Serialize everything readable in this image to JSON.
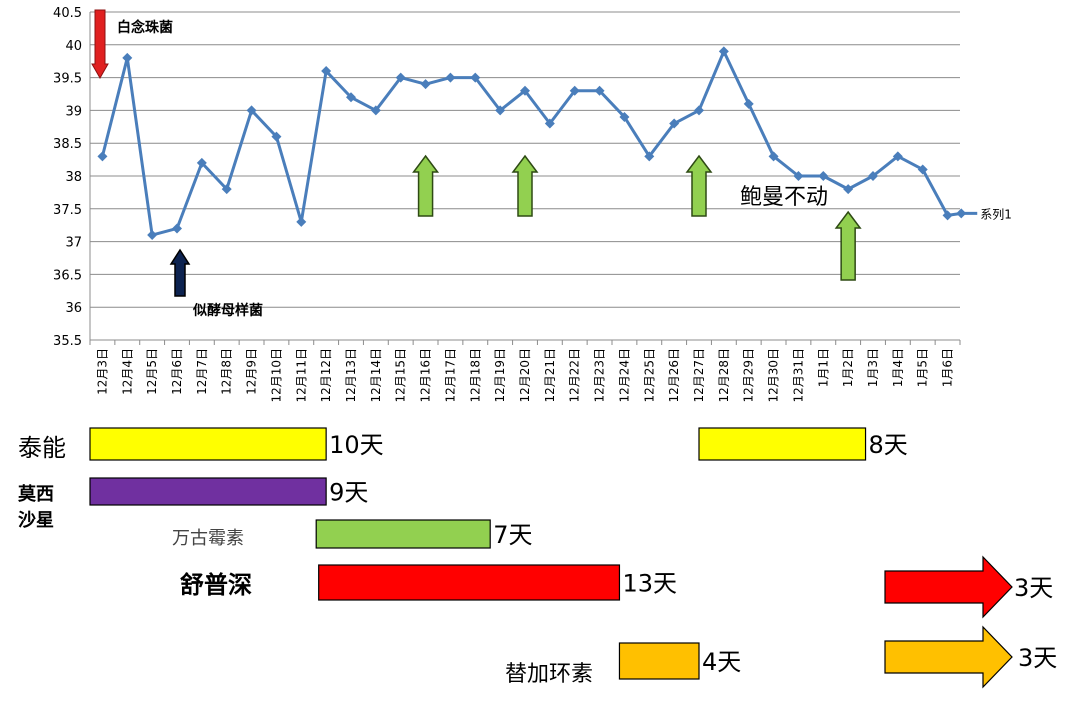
{
  "chart_data": {
    "type": "line",
    "ylim": [
      35.5,
      40.5
    ],
    "yticks": [
      "35.5",
      "36",
      "36.5",
      "37",
      "37.5",
      "38",
      "38.5",
      "39",
      "39.5",
      "40",
      "40.5"
    ],
    "grid": true,
    "categories": [
      "12月3日",
      "12月4日",
      "12月5日",
      "12月6日",
      "12月7日",
      "12月8日",
      "12月9日",
      "12月10日",
      "12月11日",
      "12月12日",
      "12月13日",
      "12月14日",
      "12月15日",
      "12月16日",
      "12月17日",
      "12月18日",
      "12月19日",
      "12月20日",
      "12月21日",
      "12月22日",
      "12月23日",
      "12月24日",
      "12月25日",
      "12月26日",
      "12月27日",
      "12月28日",
      "12月29日",
      "12月30日",
      "12月31日",
      "1月1日",
      "1月2日",
      "1月3日",
      "1月4日",
      "1月5日",
      "1月6日"
    ],
    "series": [
      {
        "name": "系列1",
        "values": [
          38.3,
          39.8,
          37.1,
          37.2,
          38.2,
          37.8,
          39.0,
          38.6,
          37.3,
          39.6,
          39.2,
          39.0,
          39.5,
          39.4,
          39.5,
          39.5,
          39.0,
          39.3,
          38.8,
          39.3,
          39.3,
          38.9,
          38.3,
          38.8,
          39.0,
          39.9,
          39.1,
          38.3,
          38.0,
          38.0,
          37.8,
          38.0,
          38.3,
          38.1,
          37.4
        ],
        "extra_point": 37.43,
        "color": "#4a7ebb"
      }
    ],
    "legend": "right",
    "annotations": [
      {
        "text": "白念珠菌",
        "arrow": "down",
        "color": "#e02020"
      },
      {
        "text": "似酵母样菌",
        "arrow": "up",
        "color": "#0d2350"
      },
      {
        "text": "鲍曼不动",
        "arrow": "up",
        "color": "#92d050"
      }
    ],
    "arrow_positions": [
      13,
      17,
      24,
      30
    ]
  },
  "treatments": [
    {
      "drug": "泰能",
      "bars": [
        {
          "start": 0,
          "end": 9.5,
          "color": "#ffff00",
          "duration": "10天"
        },
        {
          "start": 24.5,
          "end": 31.2,
          "color": "#ffff00",
          "duration": "8天"
        }
      ]
    },
    {
      "drug_line1": "莫西",
      "drug_line2": "沙星",
      "bars": [
        {
          "start": 0,
          "end": 9.5,
          "color": "#7030a0",
          "duration": "9天"
        }
      ]
    },
    {
      "drug": "万古霉素",
      "bars": [
        {
          "start": 9.1,
          "end": 16.1,
          "color": "#92d050",
          "duration": "7天"
        }
      ]
    },
    {
      "drug": "舒普深",
      "bars": [
        {
          "start": 9.2,
          "end": 21.3,
          "color": "#ff0000",
          "duration": "13天"
        }
      ],
      "continue_arrow": {
        "color": "#ff0000",
        "duration": "3天"
      }
    },
    {
      "drug": "替加环素",
      "bars": [
        {
          "start": 21.3,
          "end": 24.5,
          "color": "#ffc000",
          "duration": "4天"
        }
      ],
      "continue_arrow": {
        "color": "#ffc000",
        "duration": "3天"
      }
    }
  ]
}
